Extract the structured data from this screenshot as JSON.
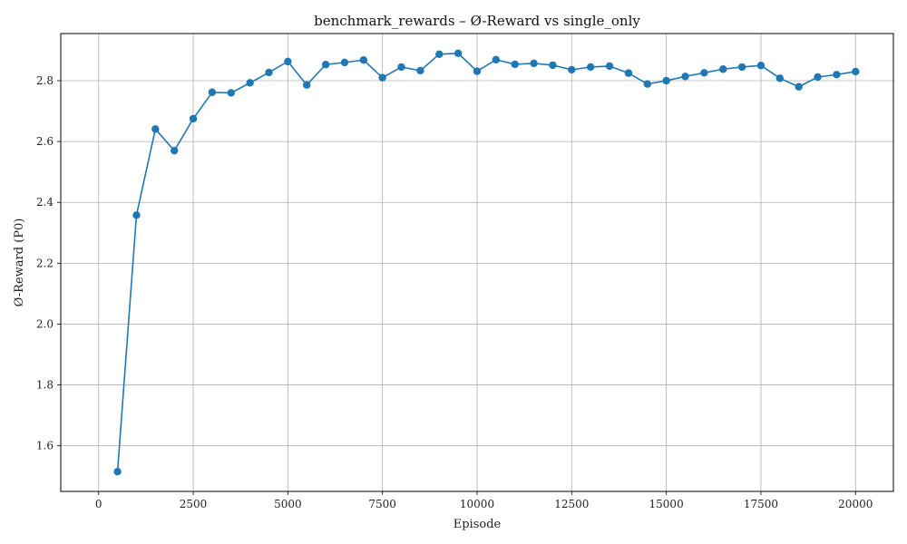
{
  "chart_data": {
    "type": "line",
    "title": "benchmark_rewards – Ø-Reward vs single_only",
    "xlabel": "Episode",
    "ylabel": "Ø-Reward (P0)",
    "xlim": [
      -1000,
      21000
    ],
    "ylim": [
      1.45,
      2.955
    ],
    "xticks": [
      0,
      2500,
      5000,
      7500,
      10000,
      12500,
      15000,
      17500,
      20000
    ],
    "yticks": [
      1.6,
      1.8,
      2.0,
      2.2,
      2.4,
      2.6,
      2.8
    ],
    "grid": true,
    "series": [
      {
        "color": "#1f77b4",
        "marker": "circle",
        "x": [
          500,
          1000,
          1500,
          2000,
          2500,
          3000,
          3500,
          4000,
          4500,
          5000,
          5500,
          6000,
          6500,
          7000,
          7500,
          8000,
          8500,
          9000,
          9500,
          10000,
          10500,
          11000,
          11500,
          12000,
          12500,
          13000,
          13500,
          14000,
          14500,
          15000,
          15500,
          16000,
          16500,
          17000,
          17500,
          18000,
          18500,
          19000,
          19500,
          20000
        ],
        "y": [
          1.515,
          2.358,
          2.641,
          2.57,
          2.675,
          2.762,
          2.76,
          2.793,
          2.827,
          2.863,
          2.786,
          2.853,
          2.86,
          2.868,
          2.81,
          2.845,
          2.833,
          2.887,
          2.89,
          2.831,
          2.869,
          2.854,
          2.857,
          2.851,
          2.836,
          2.845,
          2.848,
          2.825,
          2.789,
          2.8,
          2.814,
          2.826,
          2.838,
          2.845,
          2.85,
          2.808,
          2.78,
          2.812,
          2.82,
          2.83
        ]
      }
    ]
  }
}
